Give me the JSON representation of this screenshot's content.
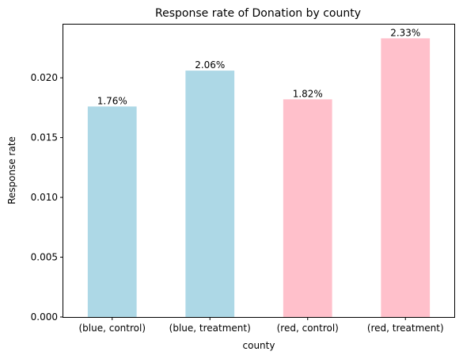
{
  "chart_data": {
    "type": "bar",
    "title": "Response rate of Donation by county",
    "xlabel": "county",
    "ylabel": "Response rate",
    "categories": [
      "(blue, control)",
      "(blue, treatment)",
      "(red, control)",
      "(red, treatment)"
    ],
    "values": [
      0.0176,
      0.0206,
      0.0182,
      0.0233
    ],
    "data_labels": [
      "1.76%",
      "2.06%",
      "1.82%",
      "2.33%"
    ],
    "bar_colors": [
      "#add8e6",
      "#add8e6",
      "#ffc0cb",
      "#ffc0cb"
    ],
    "yticks": [
      0.0,
      0.005,
      0.01,
      0.015,
      0.02
    ],
    "ytick_labels": [
      "0.000",
      "0.005",
      "0.010",
      "0.015",
      "0.020"
    ],
    "ylim": [
      0,
      0.02445
    ],
    "grid": false,
    "legend": "none"
  }
}
